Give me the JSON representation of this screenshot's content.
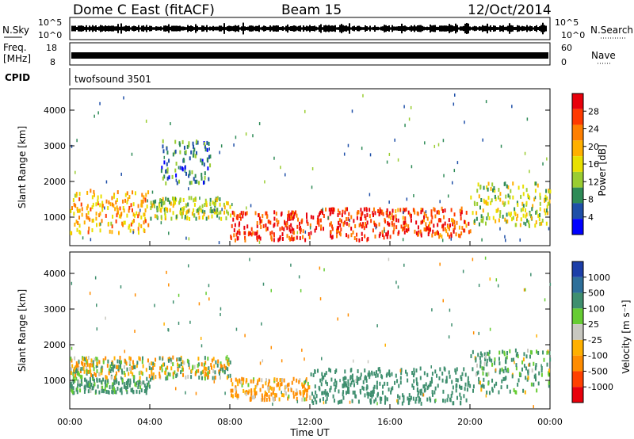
{
  "header": {
    "station": "Dome C East (fitACF)",
    "beam": "Beam 15",
    "date": "12/Oct/2014"
  },
  "top_panels": {
    "nsky_label": "N.Sky",
    "nsky_ticks": [
      "10^5",
      "10^0"
    ],
    "nsearch_label": "N.Search",
    "nsearch_ticks": [
      "10^5",
      "10^0"
    ],
    "freq_label_line1": "Freq.",
    "freq_label_line2": "[MHz]",
    "freq_ticks": [
      "18",
      "8"
    ],
    "nave_label": "Nave",
    "nave_ticks": [
      "60",
      "0"
    ],
    "cpid_label": "CPID",
    "cpid_value": "twofsound 3501"
  },
  "colorbars": {
    "power": {
      "title": "Power [dB]",
      "ticks": [
        "28",
        "24",
        "20",
        "16",
        "12",
        "8",
        "4"
      ],
      "colors": [
        "#e8000b",
        "#ff3a00",
        "#ff7f00",
        "#ffb000",
        "#e8e000",
        "#9acd32",
        "#2e8b57",
        "#1e4fa8",
        "#0000ff"
      ]
    },
    "velocity": {
      "title": "Velocity [m s⁻¹]",
      "ticks": [
        "1000",
        "500",
        "100",
        "25",
        "-25",
        "-100",
        "-500",
        "-1000"
      ],
      "colors": [
        "#1c3ea8",
        "#2e6f9a",
        "#3f8f6f",
        "#66cc33",
        "#c8c8c0",
        "#ffb000",
        "#ff8c00",
        "#ff4000",
        "#e8000b"
      ]
    }
  },
  "axes": {
    "ylabel": "Slant Range [km]",
    "xlabel": "Time UT",
    "xticks": [
      "00:00",
      "04:00",
      "08:00",
      "12:00",
      "16:00",
      "20:00",
      "00:00"
    ],
    "yticks": [
      "1000",
      "2000",
      "3000",
      "4000"
    ]
  },
  "chart_data": [
    {
      "type": "heatmap",
      "name": "power-panel",
      "quantity": "Power",
      "unit": "dB",
      "x_range_hours": [
        0,
        24
      ],
      "ylim": [
        200,
        4600
      ],
      "clim": [
        0,
        32
      ],
      "description_bands": [
        {
          "t_start": 0,
          "t_end": 4,
          "range_low": 600,
          "range_high": 1800,
          "value": 20
        },
        {
          "t_start": 4,
          "t_end": 8,
          "range_low": 1000,
          "range_high": 1600,
          "value": 14
        },
        {
          "t_start": 4.5,
          "t_end": 7,
          "range_low": 2000,
          "range_high": 3200,
          "value": 8
        },
        {
          "t_start": 8,
          "t_end": 12,
          "range_low": 400,
          "range_high": 1200,
          "value": 28
        },
        {
          "t_start": 12,
          "t_end": 16,
          "range_low": 400,
          "range_high": 1300,
          "value": 28
        },
        {
          "t_start": 16,
          "t_end": 20,
          "range_low": 500,
          "range_high": 1300,
          "value": 26
        },
        {
          "t_start": 20,
          "t_end": 24,
          "range_low": 800,
          "range_high": 2000,
          "value": 14
        }
      ]
    },
    {
      "type": "heatmap",
      "name": "velocity-panel",
      "quantity": "Velocity",
      "unit": "m s^-1",
      "x_range_hours": [
        0,
        24
      ],
      "ylim": [
        200,
        4600
      ],
      "clim": [
        -1000,
        1000
      ],
      "description_bands": [
        {
          "t_start": 0,
          "t_end": 4,
          "range_low": 700,
          "range_high": 1100,
          "value": 200
        },
        {
          "t_start": 0,
          "t_end": 8,
          "range_low": 1100,
          "range_high": 1700,
          "value": 0
        },
        {
          "t_start": 8,
          "t_end": 12,
          "range_low": 500,
          "range_high": 1100,
          "value": -150
        },
        {
          "t_start": 12,
          "t_end": 20,
          "range_low": 400,
          "range_high": 1400,
          "value": 300
        },
        {
          "t_start": 20,
          "t_end": 24,
          "range_low": 700,
          "range_high": 1900,
          "value": 150
        }
      ]
    }
  ]
}
